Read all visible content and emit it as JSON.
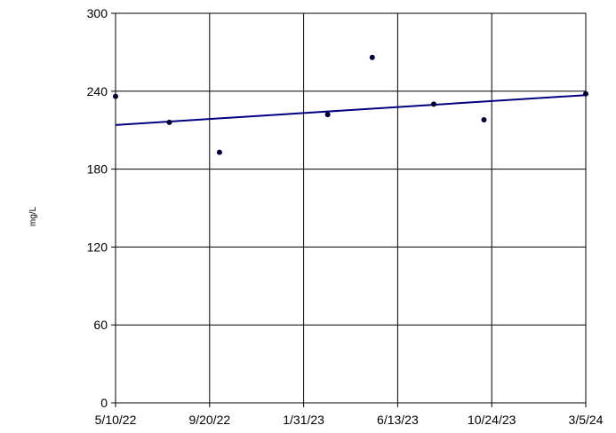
{
  "chart_data": {
    "type": "scatter",
    "title": "",
    "xlabel": "",
    "ylabel": "mg/L",
    "x_type": "date",
    "xlim": [
      "2022-05-10",
      "2024-03-05"
    ],
    "ylim": [
      0,
      300
    ],
    "grid": true,
    "legend": "none",
    "x_ticks": [
      {
        "value": "2022-05-10",
        "label": "5/10/22"
      },
      {
        "value": "2022-09-20",
        "label": "9/20/22"
      },
      {
        "value": "2023-01-31",
        "label": "1/31/23"
      },
      {
        "value": "2023-06-13",
        "label": "6/13/23"
      },
      {
        "value": "2023-10-24",
        "label": "10/24/23"
      },
      {
        "value": "2024-03-05",
        "label": "3/5/24"
      }
    ],
    "y_ticks": [
      {
        "value": 0,
        "label": "0"
      },
      {
        "value": 60,
        "label": "60"
      },
      {
        "value": 120,
        "label": "120"
      },
      {
        "value": 180,
        "label": "180"
      },
      {
        "value": 240,
        "label": "240"
      },
      {
        "value": 300,
        "label": "300"
      }
    ],
    "series": [
      {
        "points": [
          {
            "x": "2022-05-10",
            "y": 236
          },
          {
            "x": "2022-07-25",
            "y": 216
          },
          {
            "x": "2022-10-04",
            "y": 193
          },
          {
            "x": "2023-03-06",
            "y": 222
          },
          {
            "x": "2023-05-08",
            "y": 266
          },
          {
            "x": "2023-08-03",
            "y": 230
          },
          {
            "x": "2023-10-13",
            "y": 218
          },
          {
            "x": "2024-03-05",
            "y": 238
          }
        ]
      }
    ],
    "trendline": {
      "start": {
        "x": "2022-05-10",
        "y": 214
      },
      "end": {
        "x": "2024-03-05",
        "y": 237
      }
    },
    "colors": {
      "marker": "#000033",
      "trendline": "#000080",
      "grid": "#000000",
      "axis": "#000000"
    }
  }
}
